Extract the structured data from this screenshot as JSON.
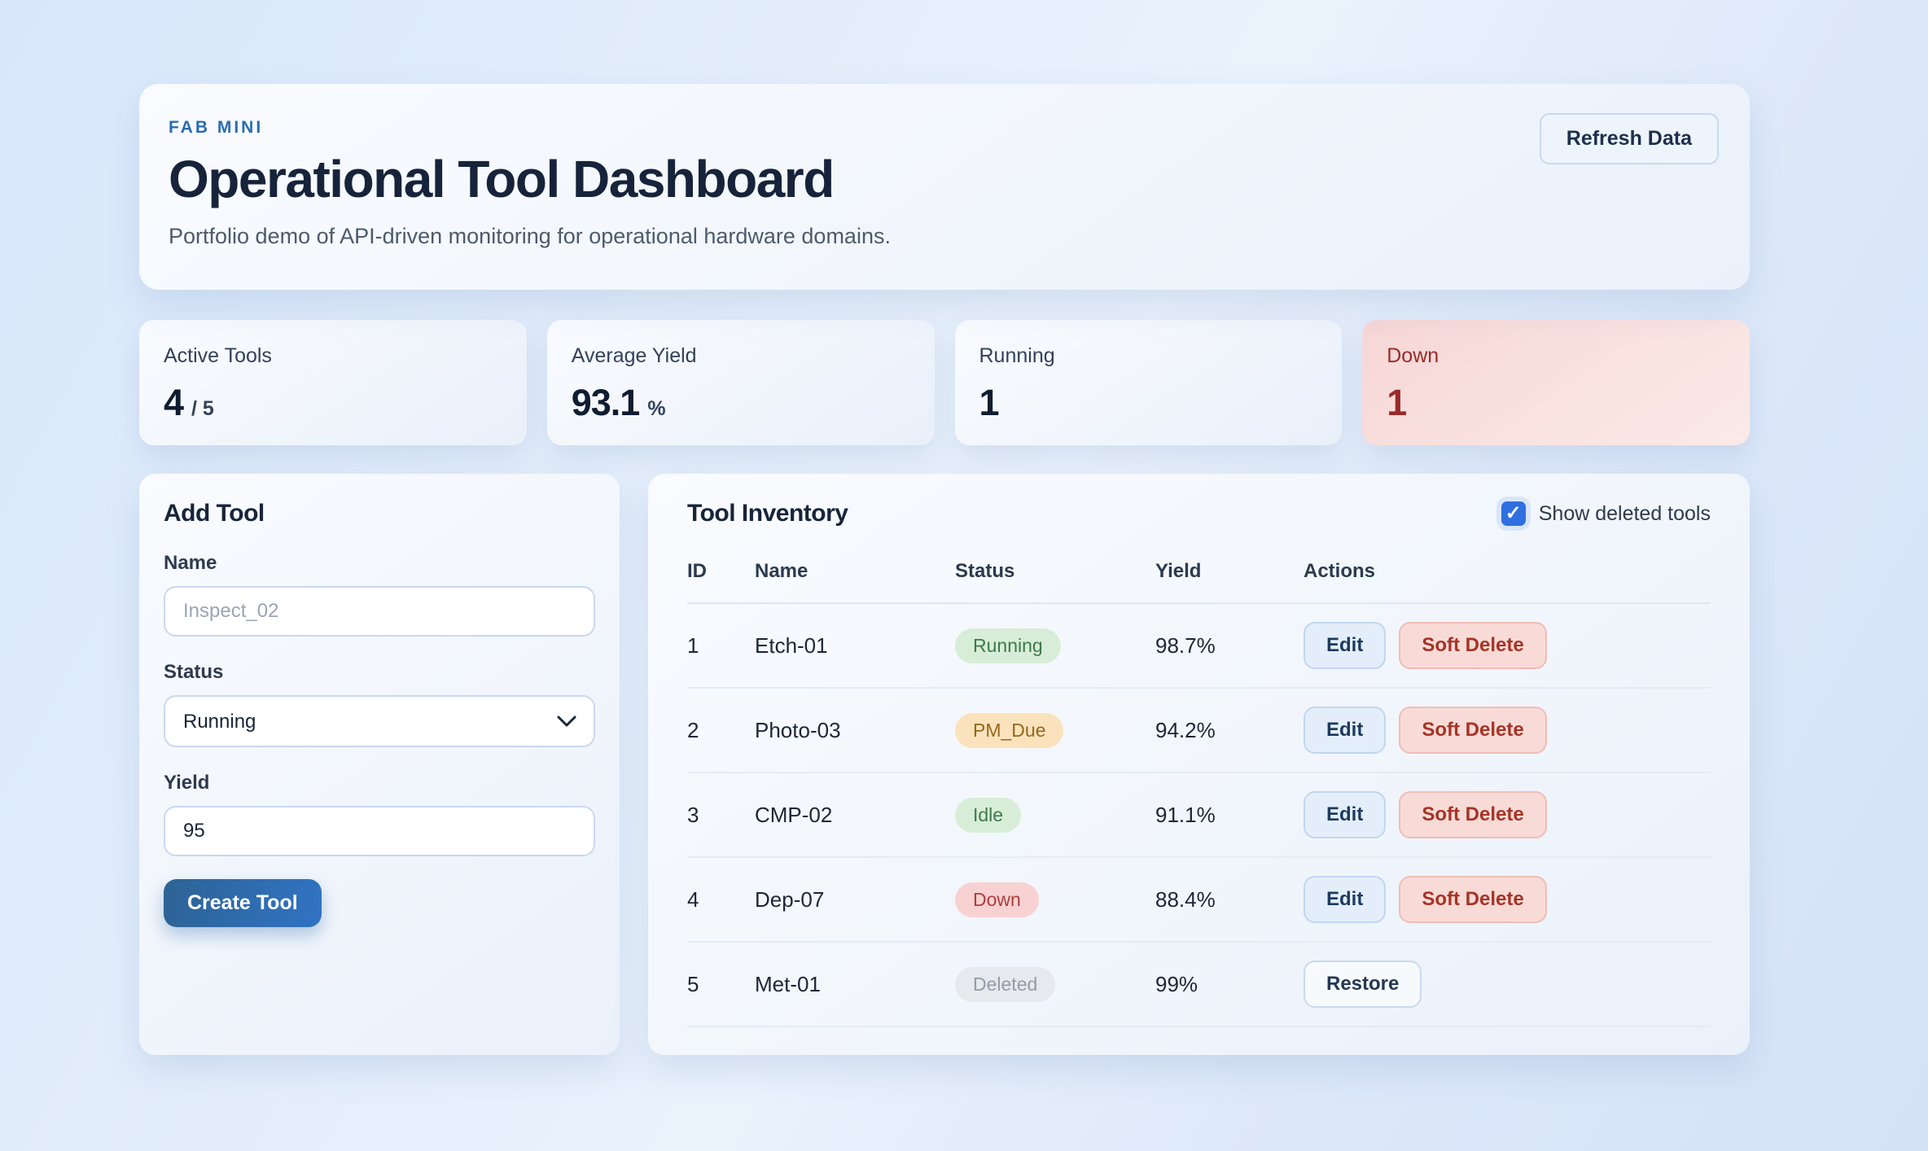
{
  "header": {
    "eyebrow": "FAB MINI",
    "title": "Operational Tool Dashboard",
    "subtitle": "Portfolio demo of API-driven monitoring for operational hardware domains.",
    "refresh_label": "Refresh Data"
  },
  "stats": [
    {
      "label": "Active Tools",
      "value": "4",
      "suffix": "/ 5",
      "variant": "default"
    },
    {
      "label": "Average Yield",
      "value": "93.1",
      "suffix": "%",
      "variant": "default"
    },
    {
      "label": "Running",
      "value": "1",
      "suffix": "",
      "variant": "default"
    },
    {
      "label": "Down",
      "value": "1",
      "suffix": "",
      "variant": "down"
    }
  ],
  "form": {
    "title": "Add Tool",
    "name_label": "Name",
    "name_placeholder": "Inspect_02",
    "status_label": "Status",
    "status_value": "Running",
    "yield_label": "Yield",
    "yield_value": "95",
    "submit_label": "Create Tool"
  },
  "inventory": {
    "title": "Tool Inventory",
    "show_deleted_label": "Show deleted tools",
    "show_deleted_checked": true,
    "columns": [
      "ID",
      "Name",
      "Status",
      "Yield",
      "Actions"
    ],
    "rows": [
      {
        "id": "1",
        "name": "Etch-01",
        "status": "Running",
        "status_variant": "green",
        "yield": "98.7%",
        "actions": [
          "Edit",
          "Soft Delete"
        ]
      },
      {
        "id": "2",
        "name": "Photo-03",
        "status": "PM_Due",
        "status_variant": "amber",
        "yield": "94.2%",
        "actions": [
          "Edit",
          "Soft Delete"
        ]
      },
      {
        "id": "3",
        "name": "CMP-02",
        "status": "Idle",
        "status_variant": "green",
        "yield": "91.1%",
        "actions": [
          "Edit",
          "Soft Delete"
        ]
      },
      {
        "id": "4",
        "name": "Dep-07",
        "status": "Down",
        "status_variant": "red",
        "yield": "88.4%",
        "actions": [
          "Edit",
          "Soft Delete"
        ]
      },
      {
        "id": "5",
        "name": "Met-01",
        "status": "Deleted",
        "status_variant": "gray",
        "yield": "99%",
        "actions": [
          "Restore"
        ]
      }
    ]
  },
  "colors": {
    "accent_blue": "#2b6cb0",
    "checkbox_blue": "#2f6fe0",
    "title_navy": "#16233a",
    "down_red": "#9b2a2a",
    "badge_green_bg": "#d8edd8",
    "badge_amber_bg": "#fae3bc",
    "badge_red_bg": "#f8d2d2",
    "badge_gray_bg": "#e6e9ed",
    "create_button_gradient_start": "#2d6395",
    "create_button_gradient_end": "#3173c4"
  }
}
